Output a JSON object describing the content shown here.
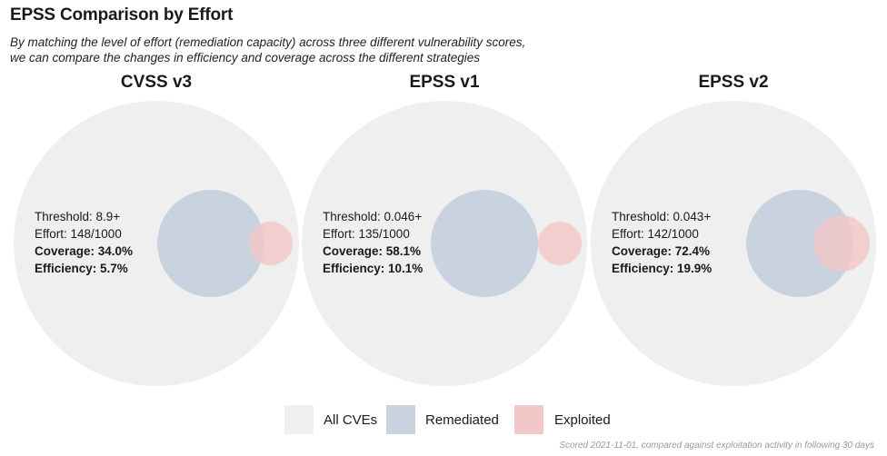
{
  "header": {
    "title": "EPSS Comparison by Effort",
    "subtitle_line1": "By matching the level of effort (remediation capacity) across three different vulnerability scores,",
    "subtitle_line2": "we can compare the changes in efficiency and coverage across the different strategies"
  },
  "footnote": "Scored 2021-11-01, compared against exploitation activity in following 30 days",
  "colors": {
    "all_cves": "#efefef",
    "remediated": "#c9d3e0",
    "exploited": "#f3c6c7",
    "exploited_overlap": "#e8c3c8"
  },
  "chart_data": {
    "type": "venn",
    "legend": {
      "placement": "bottom-center",
      "entries": [
        {
          "label": "All CVEs",
          "color": "#efefef"
        },
        {
          "label": "Remediated",
          "color": "#c9d3e0"
        },
        {
          "label": "Exploited",
          "color": "#f3c6c7"
        }
      ]
    },
    "panels": [
      {
        "name": "CVSS v3",
        "threshold_text": "Threshold: 8.9+",
        "effort_text": "Effort: 148/1000",
        "coverage_text": "Coverage: 34.0%",
        "efficiency_text": "Efficiency: 5.7%",
        "threshold": "8.9+",
        "effort": 148,
        "effort_total": 1000,
        "coverage_pct": 34.0,
        "efficiency_pct": 5.7,
        "overlap_fraction": 0.34
      },
      {
        "name": "EPSS v1",
        "threshold_text": "Threshold: 0.046+",
        "effort_text": "Effort: 135/1000",
        "coverage_text": "Coverage: 58.1%",
        "efficiency_text": "Efficiency: 10.1%",
        "threshold": "0.046+",
        "effort": 135,
        "effort_total": 1000,
        "coverage_pct": 58.1,
        "efficiency_pct": 10.1,
        "overlap_fraction": 0.581
      },
      {
        "name": "EPSS v2",
        "threshold_text": "Threshold: 0.043+",
        "effort_text": "Effort: 142/1000",
        "coverage_text": "Coverage: 72.4%",
        "efficiency_text": "Efficiency: 19.9%",
        "threshold": "0.043+",
        "effort": 142,
        "effort_total": 1000,
        "coverage_pct": 72.4,
        "efficiency_pct": 19.9,
        "overlap_fraction": 0.724
      }
    ]
  }
}
